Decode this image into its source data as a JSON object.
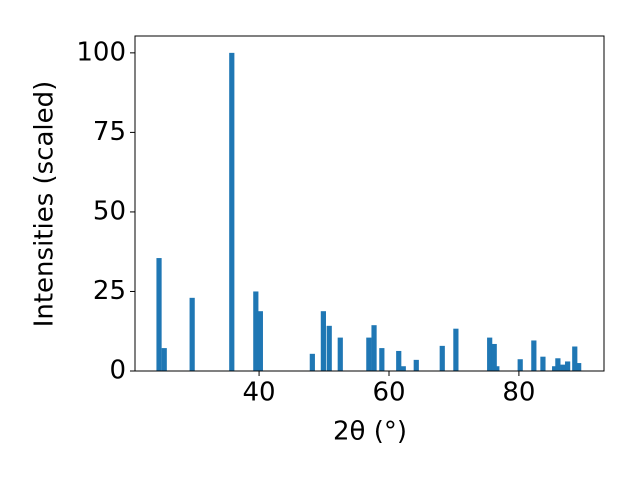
{
  "chart_data": {
    "type": "bar",
    "xlabel": "2θ (°)",
    "ylabel": "Intensities (scaled)",
    "x": [
      24.6,
      25.4,
      29.7,
      35.8,
      39.5,
      40.2,
      48.2,
      49.9,
      50.8,
      52.5,
      56.9,
      57.7,
      58.9,
      61.5,
      62.2,
      64.2,
      68.2,
      70.3,
      75.5,
      76.2,
      76.6,
      80.2,
      82.3,
      83.7,
      85.5,
      86.0,
      86.8,
      87.5,
      88.6,
      89.2
    ],
    "values": [
      35.5,
      7.2,
      23,
      100,
      25,
      18.8,
      5.4,
      18.8,
      14.2,
      10.5,
      10.5,
      14.4,
      7.2,
      6.3,
      1.5,
      3.5,
      7.9,
      13.3,
      10.5,
      8.5,
      1.5,
      3.7,
      9.6,
      4.5,
      1.5,
      4,
      2,
      3,
      7.7,
      2.5
    ],
    "color": "#1f77b4",
    "xlim": [
      20.9,
      93.1
    ],
    "xticks": [
      40,
      60,
      80
    ],
    "ylim": [
      0,
      105.3
    ],
    "yticks": [
      0,
      25,
      50,
      75,
      100
    ]
  }
}
